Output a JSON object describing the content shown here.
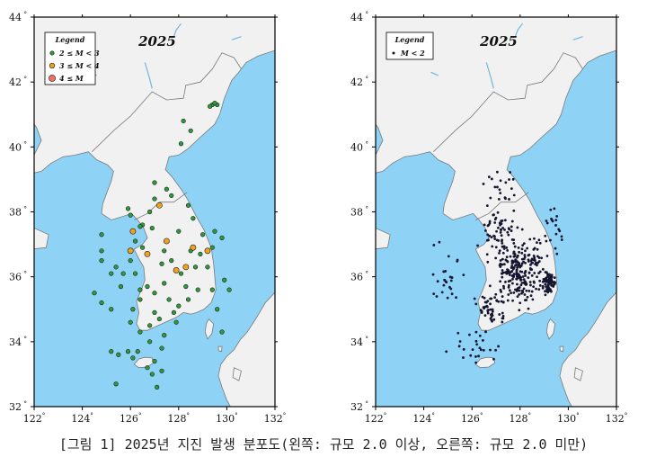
{
  "caption": "[그림 1] 2025년 지진 발생 분포도(왼쪽: 규모 2.0 이상, 오른쪽: 규모 2.0 미만)",
  "axis": {
    "x_ticks": [
      "122",
      "124",
      "126",
      "128",
      "130",
      "132"
    ],
    "y_ticks": [
      "44",
      "42",
      "40",
      "38",
      "36",
      "34",
      "32"
    ],
    "degree_symbol": "°",
    "lon_range": [
      122,
      132
    ],
    "lat_range": [
      32,
      44
    ]
  },
  "colors": {
    "sea": "#8ed2f5",
    "land": "#f1f1f1",
    "border": "#7a7a7a",
    "small_quake": "#2f9a3a",
    "medium_quake": "#f0a21f",
    "large_quake": "#ef6f67",
    "micro_quake": "#151530"
  },
  "maps": {
    "left": {
      "year_label": "2025",
      "legend_title": "Legend",
      "legend_items": [
        {
          "label": "2 ≤ M < 3",
          "color": "#2f9a3a"
        },
        {
          "label": "3 ≤ M < 4",
          "color": "#f0a21f"
        },
        {
          "label": "4 ≤ M",
          "color": "#ef6f67"
        }
      ],
      "quakes_small": [
        [
          128.2,
          40.8
        ],
        [
          128.5,
          40.5
        ],
        [
          128.1,
          40.1
        ],
        [
          129.4,
          41.3
        ],
        [
          129.6,
          41.3
        ],
        [
          129.5,
          41.35
        ],
        [
          129.3,
          41.25
        ],
        [
          127.0,
          38.4
        ],
        [
          126.2,
          37.1
        ],
        [
          126.5,
          37.6
        ],
        [
          126.0,
          37.9
        ],
        [
          126.4,
          37.55
        ],
        [
          124.8,
          36.8
        ],
        [
          124.8,
          36.5
        ],
        [
          124.5,
          35.5
        ],
        [
          124.8,
          35.2
        ],
        [
          125.2,
          35.0
        ],
        [
          125.6,
          35.7
        ],
        [
          125.7,
          36.1
        ],
        [
          125.4,
          36.3
        ],
        [
          126.2,
          36.1
        ],
        [
          126.4,
          35.6
        ],
        [
          126.4,
          35.3
        ],
        [
          126.1,
          35.0
        ],
        [
          126.7,
          35.7
        ],
        [
          127.0,
          35.5
        ],
        [
          127.4,
          35.8
        ],
        [
          127.3,
          36.4
        ],
        [
          127.7,
          36.5
        ],
        [
          128.1,
          36.1
        ],
        [
          128.3,
          35.7
        ],
        [
          128.8,
          35.6
        ],
        [
          128.5,
          36.8
        ],
        [
          128.0,
          37.4
        ],
        [
          128.6,
          37.8
        ],
        [
          127.7,
          38.5
        ],
        [
          127.5,
          38.7
        ],
        [
          126.9,
          37.5
        ],
        [
          127.4,
          36.8
        ],
        [
          129.2,
          36.3
        ],
        [
          129.4,
          35.6
        ],
        [
          129.9,
          35.9
        ],
        [
          130.1,
          35.6
        ],
        [
          129.8,
          37.2
        ],
        [
          129.4,
          36.9
        ],
        [
          129.0,
          37.3
        ],
        [
          129.6,
          35.0
        ],
        [
          129.8,
          34.3
        ],
        [
          128.4,
          35.3
        ],
        [
          128.0,
          35.1
        ],
        [
          127.6,
          35.3
        ],
        [
          127.8,
          34.9
        ],
        [
          126.0,
          34.6
        ],
        [
          126.4,
          34.3
        ],
        [
          126.8,
          34.5
        ],
        [
          127.2,
          34.7
        ],
        [
          127.9,
          34.6
        ],
        [
          127.4,
          34.2
        ],
        [
          125.9,
          33.7
        ],
        [
          126.1,
          33.5
        ],
        [
          126.3,
          33.7
        ],
        [
          127.3,
          33.8
        ],
        [
          127.0,
          33.4
        ],
        [
          126.7,
          33.2
        ],
        [
          125.5,
          33.6
        ],
        [
          125.2,
          33.7
        ],
        [
          126.9,
          33.0
        ],
        [
          125.4,
          32.7
        ],
        [
          127.1,
          32.6
        ],
        [
          127.3,
          33.1
        ],
        [
          127.0,
          38.9
        ],
        [
          126.8,
          38.0
        ],
        [
          124.8,
          37.3
        ],
        [
          126.0,
          36.5
        ],
        [
          126.5,
          36.9
        ],
        [
          128.4,
          38.2
        ],
        [
          126.8,
          34.0
        ],
        [
          127.0,
          34.9
        ],
        [
          128.7,
          36.3
        ],
        [
          128.9,
          36.7
        ],
        [
          129.5,
          37.4
        ],
        [
          125.2,
          36.1
        ],
        [
          125.9,
          38.1
        ]
      ],
      "quakes_medium": [
        [
          126.7,
          36.7
        ],
        [
          127.2,
          38.2
        ],
        [
          127.5,
          37.1
        ],
        [
          128.3,
          36.3
        ],
        [
          126.1,
          37.4
        ],
        [
          126.0,
          36.8
        ],
        [
          128.6,
          36.9
        ],
        [
          127.9,
          36.2
        ],
        [
          129.2,
          36.8
        ]
      ],
      "quakes_large": []
    },
    "right": {
      "year_label": "2025",
      "legend_title": "Legend",
      "legend_items": [
        {
          "label": "M < 2",
          "color": "#151530"
        }
      ],
      "micro_seed": 7,
      "micro_clusters": [
        {
          "lon": 128.1,
          "lat": 36.2,
          "sx": 0.9,
          "sy": 0.75,
          "n": 230
        },
        {
          "lon": 129.2,
          "lat": 35.8,
          "sx": 0.25,
          "sy": 0.3,
          "n": 70
        },
        {
          "lon": 127.2,
          "lat": 37.4,
          "sx": 0.7,
          "sy": 0.6,
          "n": 60
        },
        {
          "lon": 126.8,
          "lat": 35.0,
          "sx": 0.6,
          "sy": 0.4,
          "n": 50
        },
        {
          "lon": 125.0,
          "lat": 35.9,
          "sx": 0.5,
          "sy": 1.0,
          "n": 25
        },
        {
          "lon": 127.3,
          "lat": 38.7,
          "sx": 0.6,
          "sy": 0.5,
          "n": 20
        },
        {
          "lon": 126.2,
          "lat": 33.9,
          "sx": 0.9,
          "sy": 0.5,
          "n": 25
        },
        {
          "lon": 129.4,
          "lat": 37.5,
          "sx": 0.4,
          "sy": 0.6,
          "n": 20
        }
      ]
    }
  }
}
